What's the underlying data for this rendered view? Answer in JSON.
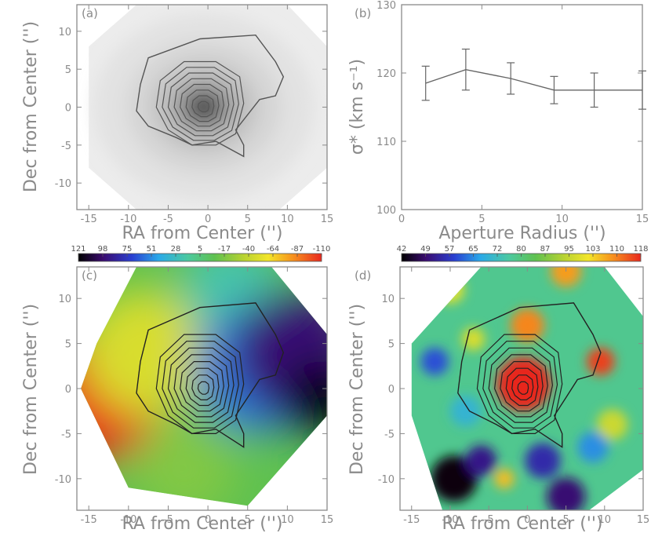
{
  "chart_data": [
    {
      "id": "a",
      "type": "heatmap",
      "panel_label": "(a)",
      "description_kind": "intensity image with contours",
      "xlabel": "RA from Center ('')",
      "ylabel": "Dec from Center ('')",
      "xlim": [
        -16.5,
        15
      ],
      "ylim": [
        -13.5,
        13.5
      ],
      "xticks": [
        "-15",
        "-10",
        "-5",
        "0",
        "5",
        "10",
        "15"
      ],
      "yticks": [
        "-10",
        "-5",
        "0",
        "5",
        "10"
      ],
      "colormap": "grayscale",
      "outer_contour": [
        [
          -7.5,
          6.5
        ],
        [
          -1,
          9
        ],
        [
          6,
          9.5
        ],
        [
          8.5,
          6
        ],
        [
          9.5,
          4
        ],
        [
          8.5,
          1.5
        ],
        [
          6.5,
          1
        ],
        [
          5,
          -1
        ],
        [
          3.5,
          -3
        ],
        [
          4.5,
          -5
        ],
        [
          4.5,
          -6.5
        ],
        [
          1,
          -4.5
        ],
        [
          -2,
          -5
        ],
        [
          -4,
          -4
        ],
        [
          -7.5,
          -2.5
        ],
        [
          -9,
          -0.5
        ],
        [
          -8.5,
          3
        ]
      ],
      "contour_levels": 8
    },
    {
      "id": "b",
      "type": "line",
      "panel_label": "(b)",
      "xlabel": "Aperture Radius ('')",
      "ylabel": "σ* (km s⁻¹)",
      "xlim": [
        0,
        15
      ],
      "ylim": [
        100,
        130
      ],
      "xticks": [
        "0",
        "5",
        "10",
        "15"
      ],
      "yticks": [
        "100",
        "110",
        "120",
        "130"
      ],
      "x": [
        1.5,
        4,
        6.8,
        9.5,
        12,
        15
      ],
      "y": [
        118.5,
        120.5,
        119.2,
        117.5,
        117.5,
        117.5
      ],
      "yerr": [
        2.5,
        3,
        2.3,
        2,
        2.5,
        2.8
      ]
    },
    {
      "id": "c",
      "type": "heatmap",
      "panel_label": "(c)",
      "xlabel": "RA from Center ('')",
      "ylabel": "Dec from Center ('')",
      "xlim": [
        -16.5,
        15
      ],
      "ylim": [
        -13.5,
        13.5
      ],
      "xticks": [
        "-15",
        "-10",
        "-5",
        "0",
        "5",
        "10",
        "15"
      ],
      "yticks": [
        "-10",
        "-5",
        "0",
        "5",
        "10"
      ],
      "colorbar_ticks": [
        "121",
        "98",
        "75",
        "51",
        "28",
        "5",
        "-17",
        "-40",
        "-64",
        "-87",
        "-110"
      ],
      "colorbar_reversed": true,
      "field": "velocity gradient: positive (red) east/left, negative (violet) west/right",
      "blobs": [
        {
          "x": -14,
          "y": -1,
          "value": 121,
          "r": 5
        },
        {
          "x": -8,
          "y": 4,
          "value": 60,
          "r": 5
        },
        {
          "x": -3,
          "y": -9,
          "value": 30,
          "r": 4
        },
        {
          "x": 3,
          "y": 11,
          "value": -10,
          "r": 4
        },
        {
          "x": 6,
          "y": 2,
          "value": -45,
          "r": 5
        },
        {
          "x": 11,
          "y": 4,
          "value": -85,
          "r": 5
        },
        {
          "x": 14,
          "y": -1,
          "value": -110,
          "r": 3
        }
      ]
    },
    {
      "id": "d",
      "type": "heatmap",
      "panel_label": "(d)",
      "xlabel": "RA from Center ('')",
      "ylabel": "Dec from Center ('')",
      "xlim": [
        -16.5,
        15
      ],
      "ylim": [
        -13.5,
        13.5
      ],
      "xticks": [
        "-15",
        "-10",
        "-5",
        "0",
        "5",
        "10",
        "15"
      ],
      "yticks": [
        "-10",
        "-5",
        "0",
        "5",
        "10"
      ],
      "colorbar_ticks": [
        "42",
        "49",
        "57",
        "65",
        "72",
        "80",
        "87",
        "95",
        "103",
        "110",
        "118"
      ],
      "colorbar_reversed": false,
      "background_value": 78,
      "blobs": [
        {
          "x": -0.5,
          "y": 0.5,
          "value": 118,
          "r": 3.5
        },
        {
          "x": 9.5,
          "y": 3,
          "value": 116,
          "r": 1.8
        },
        {
          "x": 0,
          "y": 7,
          "value": 110,
          "r": 2.2
        },
        {
          "x": 5,
          "y": 13,
          "value": 108,
          "r": 2
        },
        {
          "x": -10,
          "y": 11,
          "value": 100,
          "r": 1.8
        },
        {
          "x": -7,
          "y": 5.5,
          "value": 98,
          "r": 1.5
        },
        {
          "x": 11,
          "y": -4,
          "value": 96,
          "r": 2
        },
        {
          "x": -3,
          "y": -10,
          "value": 105,
          "r": 1.3
        },
        {
          "x": -12,
          "y": 3,
          "value": 60,
          "r": 1.8
        },
        {
          "x": -9.5,
          "y": -10,
          "value": 43,
          "r": 3
        },
        {
          "x": -6,
          "y": -8,
          "value": 52,
          "r": 2
        },
        {
          "x": 2,
          "y": -8,
          "value": 55,
          "r": 2.3
        },
        {
          "x": 5,
          "y": -12,
          "value": 50,
          "r": 2.5
        },
        {
          "x": 8.5,
          "y": -6.5,
          "value": 65,
          "r": 2
        },
        {
          "x": -8,
          "y": -2.5,
          "value": 70,
          "r": 2
        }
      ]
    }
  ]
}
